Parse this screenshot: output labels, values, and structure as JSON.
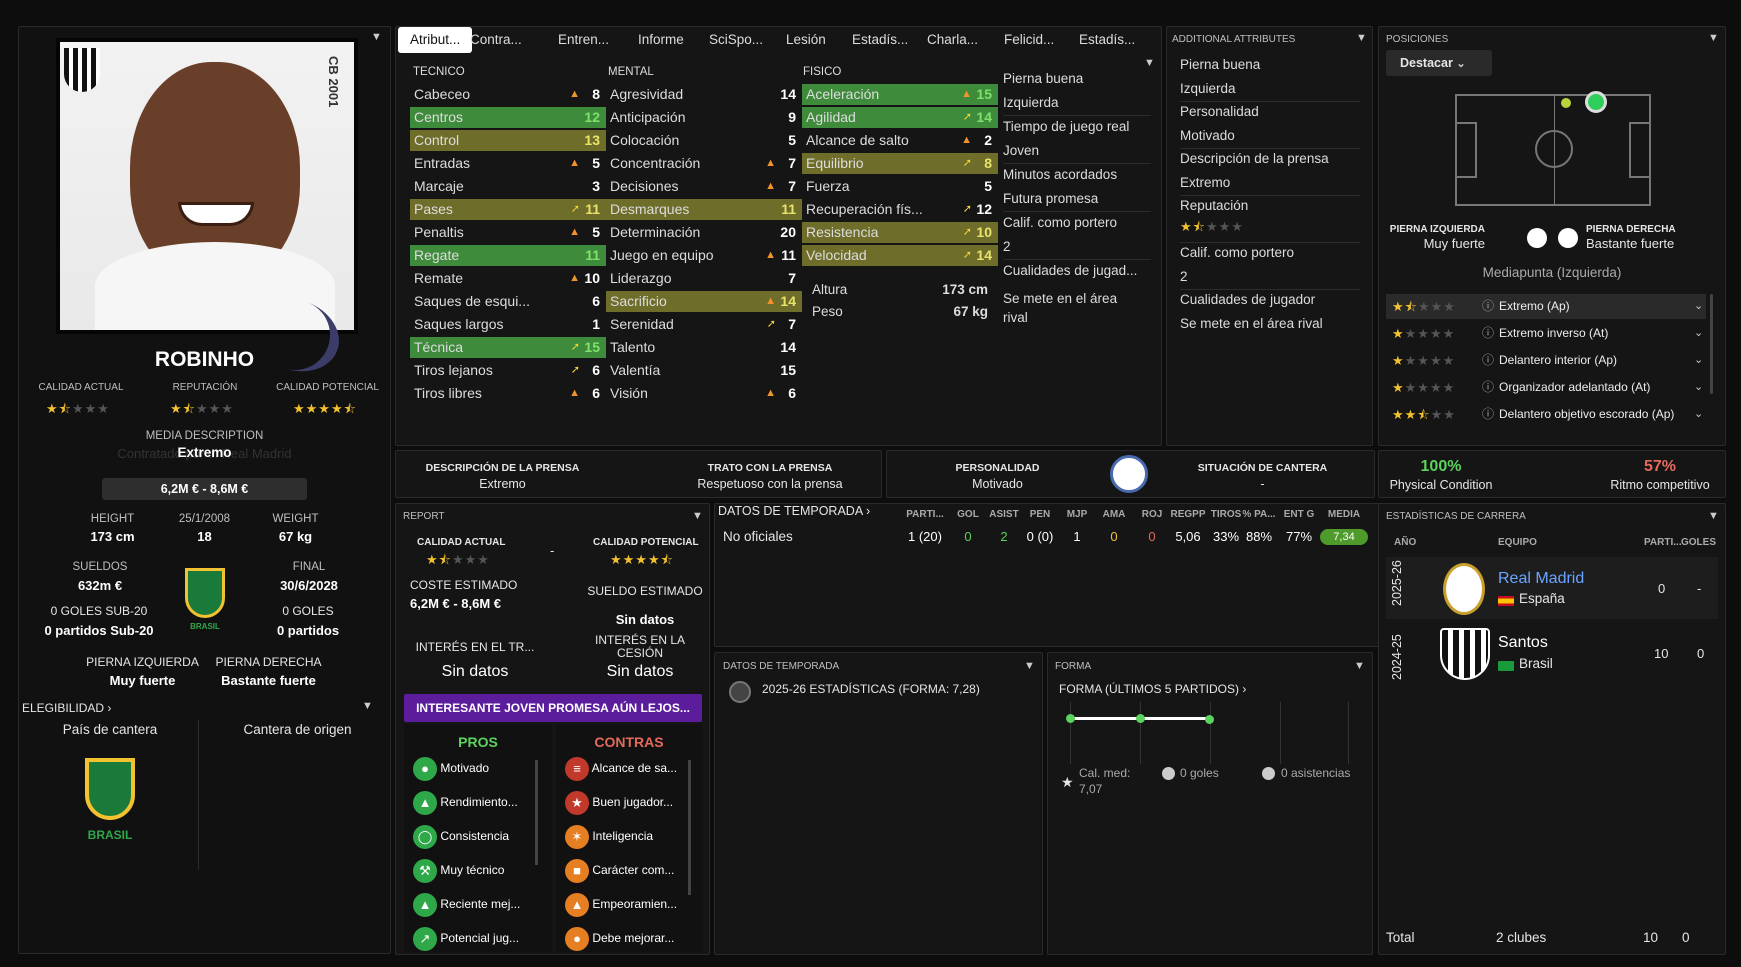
{
  "player": {
    "name": "ROBINHO",
    "calidad_actual_label": "CALIDAD ACTUAL",
    "reputacion_label": "REPUTACIÓN",
    "calidad_potencial_label": "CALIDAD POTENCIAL",
    "media_description_label": "MEDIA DESCRIPTION",
    "media_description_ghost": "Contratado por el Real Madrid",
    "media_description": "Extremo",
    "value": "6,2M € - 8,6M €",
    "height_label": "HEIGHT",
    "height": "173 cm",
    "dob": "25/1/2008",
    "age": "18",
    "weight_label": "WEIGHT",
    "weight": "67 kg",
    "sueldos_label": "SUELDOS",
    "sueldos": "632m €",
    "final_label": "FINAL",
    "final": "30/6/2028",
    "goles_sub20": "0 GOLES SUB-20",
    "partidos_sub20": "0 partidos Sub-20",
    "goles": "0 GOLES",
    "partidos": "0 partidos",
    "pierna_izq_label": "PIERNA IZQUIERDA",
    "pierna_izq": "Muy fuerte",
    "pierna_der_label": "PIERNA DERECHA",
    "pierna_der": "Bastante fuerte",
    "elegibilidad": "ELEGIBILIDAD",
    "pais_cantera": "País de cantera",
    "cantera_origen": "Cantera de origen",
    "brasil": "BRASIL",
    "photo_text": "CB 2001",
    "ca_stars": 1.5,
    "rep_stars": 1.5,
    "pa_stars": 4.5
  },
  "tabs": [
    "Atribut...",
    "Contra...",
    "Entren...",
    "Informe",
    "SciSpo...",
    "Lesión",
    "Estadís...",
    "Charla...",
    "Felicid...",
    "Estadís..."
  ],
  "tecnico": {
    "title": "TECNICO",
    "items": [
      {
        "n": "Cabeceo",
        "v": "8",
        "a": "o",
        "h": ""
      },
      {
        "n": "Centros",
        "v": "12",
        "a": "",
        "h": "g"
      },
      {
        "n": "Control",
        "v": "13",
        "a": "",
        "h": "o"
      },
      {
        "n": "Entradas",
        "v": "5",
        "a": "o",
        "h": ""
      },
      {
        "n": "Marcaje",
        "v": "3",
        "a": "",
        "h": ""
      },
      {
        "n": "Pases",
        "v": "11",
        "a": "y",
        "h": "o"
      },
      {
        "n": "Penaltis",
        "v": "5",
        "a": "o",
        "h": ""
      },
      {
        "n": "Regate",
        "v": "11",
        "a": "",
        "h": "g"
      },
      {
        "n": "Remate",
        "v": "10",
        "a": "o",
        "h": ""
      },
      {
        "n": "Saques de esqui...",
        "v": "6",
        "a": "",
        "h": ""
      },
      {
        "n": "Saques largos",
        "v": "1",
        "a": "",
        "h": ""
      },
      {
        "n": "Técnica",
        "v": "15",
        "a": "y",
        "h": "g"
      },
      {
        "n": "Tiros lejanos",
        "v": "6",
        "a": "y",
        "h": ""
      },
      {
        "n": "Tiros libres",
        "v": "6",
        "a": "o",
        "h": ""
      }
    ]
  },
  "mental": {
    "title": "MENTAL",
    "items": [
      {
        "n": "Agresividad",
        "v": "14",
        "a": "",
        "h": ""
      },
      {
        "n": "Anticipación",
        "v": "9",
        "a": "",
        "h": ""
      },
      {
        "n": "Colocación",
        "v": "5",
        "a": "",
        "h": ""
      },
      {
        "n": "Concentración",
        "v": "7",
        "a": "o",
        "h": ""
      },
      {
        "n": "Decisiones",
        "v": "7",
        "a": "o",
        "h": ""
      },
      {
        "n": "Desmarques",
        "v": "11",
        "a": "",
        "h": "o"
      },
      {
        "n": "Determinación",
        "v": "20",
        "a": "",
        "h": ""
      },
      {
        "n": "Juego en equipo",
        "v": "11",
        "a": "o",
        "h": ""
      },
      {
        "n": "Liderazgo",
        "v": "7",
        "a": "",
        "h": ""
      },
      {
        "n": "Sacrificio",
        "v": "14",
        "a": "o",
        "h": "o"
      },
      {
        "n": "Serenidad",
        "v": "7",
        "a": "y",
        "h": ""
      },
      {
        "n": "Talento",
        "v": "14",
        "a": "",
        "h": ""
      },
      {
        "n": "Valentía",
        "v": "15",
        "a": "",
        "h": ""
      },
      {
        "n": "Visión",
        "v": "6",
        "a": "o",
        "h": ""
      }
    ]
  },
  "fisico": {
    "title": "FISICO",
    "items": [
      {
        "n": "Aceleración",
        "v": "15",
        "a": "o",
        "h": "g"
      },
      {
        "n": "Agilidad",
        "v": "14",
        "a": "y",
        "h": "g"
      },
      {
        "n": "Alcance de salto",
        "v": "2",
        "a": "o",
        "h": ""
      },
      {
        "n": "Equilibrio",
        "v": "8",
        "a": "y",
        "h": "o"
      },
      {
        "n": "Fuerza",
        "v": "5",
        "a": "",
        "h": ""
      },
      {
        "n": "Recuperación fís...",
        "v": "12",
        "a": "y",
        "h": ""
      },
      {
        "n": "Resistencia",
        "v": "10",
        "a": "y",
        "h": "o"
      },
      {
        "n": "Velocidad",
        "v": "14",
        "a": "y",
        "h": "o"
      }
    ],
    "altura_label": "Altura",
    "altura": "173 cm",
    "peso_label": "Peso",
    "peso": "67 kg"
  },
  "side_info": [
    "Pierna buena",
    "Izquierda",
    "Tiempo de juego real",
    "Joven",
    "Minutos acordados",
    "Futura promesa",
    "Calif. como portero",
    "2",
    "Cualidades de jugad...",
    "Se mete en el área",
    "rival"
  ],
  "additional": {
    "title": "ADDITIONAL ATTRIBUTES",
    "rows": [
      "Pierna buena",
      "Izquierda",
      "Personalidad",
      "Motivado",
      "Descripción de la prensa",
      "Extremo",
      "Reputación",
      "",
      "Calif. como portero",
      "2",
      "Cualidades de jugador",
      "Se mete en el área rival"
    ],
    "rep_stars": 1.5
  },
  "posiciones": {
    "title": "POSICIONES",
    "dropdown": "Destacar",
    "pi_label": "PIERNA IZQUIERDA",
    "pi": "Muy fuerte",
    "pd_label": "PIERNA DERECHA",
    "pd": "Bastante fuerte",
    "role": "Mediapunta (Izquierda)",
    "roles": [
      {
        "n": "Extremo (Ap)",
        "s": 1.5
      },
      {
        "n": "Extremo inverso (At)",
        "s": 1
      },
      {
        "n": "Delantero interior (Ap)",
        "s": 1
      },
      {
        "n": "Organizador adelantado (At)",
        "s": 1
      },
      {
        "n": "Delantero objetivo escorado (Ap)",
        "s": 2.5
      }
    ]
  },
  "press": {
    "desc_label": "DESCRIPCIÓN DE LA PRENSA",
    "desc": "Extremo",
    "trato_label": "TRATO CON LA PRENSA",
    "trato": "Respetuoso con la prensa",
    "pers_label": "PERSONALIDAD",
    "pers": "Motivado",
    "cantera_label": "SITUACIÓN DE CANTERA",
    "cantera": "-"
  },
  "condition": {
    "phys": "100%",
    "phys_label": "Physical Condition",
    "ritmo": "57%",
    "ritmo_label": "Ritmo competitivo"
  },
  "report": {
    "title": "REPORT",
    "ca": "CALIDAD ACTUAL",
    "pa": "CALIDAD POTENCIAL",
    "dash": "-",
    "coste_label": "COSTE ESTIMADO",
    "coste": "6,2M € - 8,6M €",
    "sueldo_label": "SUELDO ESTIMADO",
    "sueldo": "Sin datos",
    "interes_tr": "INTERÉS EN EL TR...",
    "interes_tr_v": "Sin datos",
    "interes_ces": "INTERÉS EN LA CESIÓN",
    "interes_ces_v": "Sin datos",
    "banner": "INTERESANTE JOVEN PROMESA AÚN LEJOS...",
    "pros_label": "PROS",
    "contras_label": "CONTRAS",
    "pros": [
      "Motivado",
      "Rendimiento...",
      "Consistencia",
      "Muy técnico",
      "Reciente mej...",
      "Potencial jug..."
    ],
    "contras": [
      "Alcance de sa...",
      "Buen jugador...",
      "Inteligencia",
      "Carácter com...",
      "Empeoramien...",
      "Debe mejorar..."
    ]
  },
  "season": {
    "title": "DATOS DE TEMPORADA",
    "cols": [
      "PARTI...",
      "GOL",
      "ASIST",
      "PEN",
      "MJP",
      "AMA",
      "ROJ",
      "REGPP",
      "TIROS",
      "% PA...",
      "ENT G",
      "MEDIA"
    ],
    "row": {
      "label": "No oficiales",
      "vals": [
        "1 (20)",
        "0",
        "2",
        "0 (0)",
        "1",
        "0",
        "0",
        "5,06",
        "33%",
        "88%",
        "77%",
        "7,34"
      ]
    }
  },
  "season2": {
    "title": "DATOS DE TEMPORADA",
    "text": "2025-26 ESTADÍSTICAS (FORMA: 7,28)"
  },
  "forma": {
    "title": "FORMA",
    "sub": "FORMA (ÚLTIMOS 5 PARTIDOS)",
    "cal_label": "Cal. med:",
    "cal": "7,07",
    "goles": "0 goles",
    "asist": "0 asistencias"
  },
  "career": {
    "title": "ESTADÍSTICAS DE CARRERA",
    "h_ano": "AÑO",
    "h_equipo": "EQUIPO",
    "h_parti": "PARTI...",
    "h_goles": "GOLES",
    "rows": [
      {
        "year": "2025-26",
        "team": "Real Madrid",
        "country": "España",
        "p": "0",
        "g": "-"
      },
      {
        "year": "2024-25",
        "team": "Santos",
        "country": "Brasil",
        "p": "10",
        "g": "0"
      }
    ],
    "total": "Total",
    "clubs": "2 clubes",
    "tp": "10",
    "tg": "0"
  }
}
